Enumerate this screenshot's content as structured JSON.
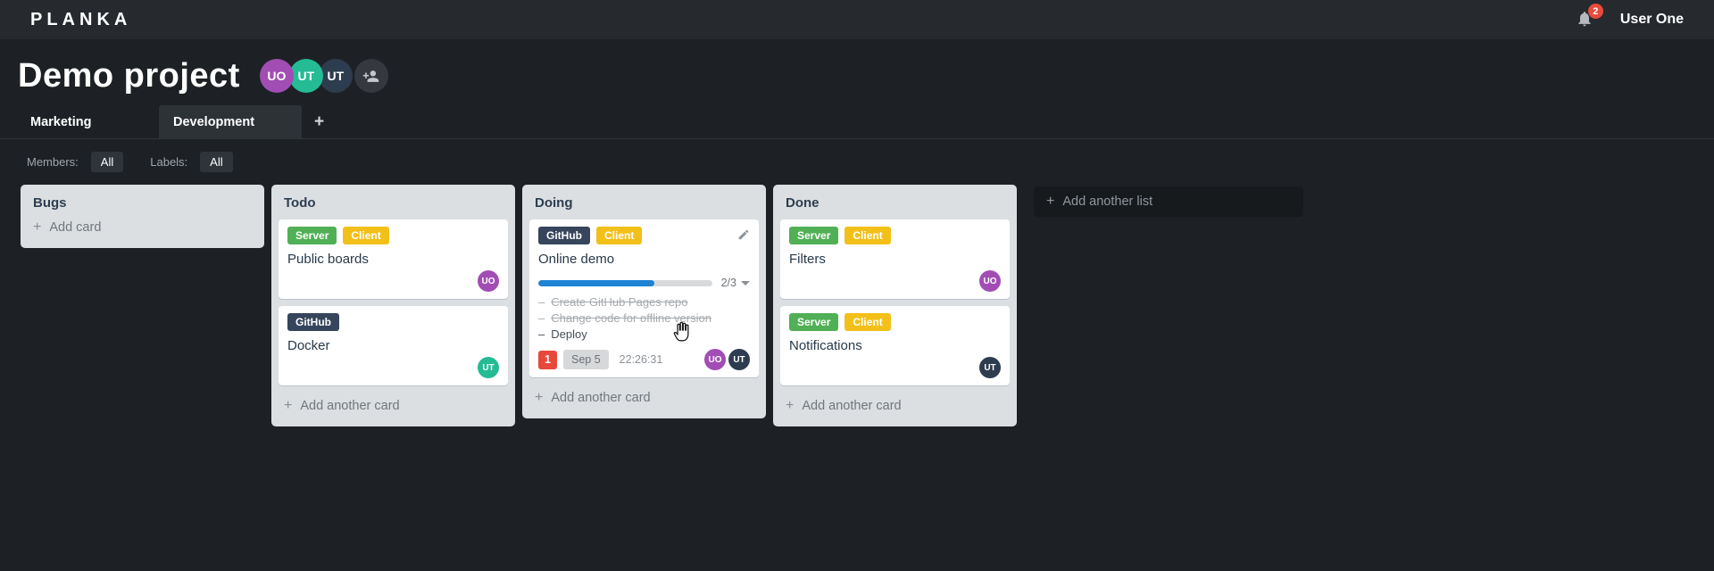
{
  "topbar": {
    "logo": "PLANKA",
    "user_name": "User One",
    "notifications_count": "2"
  },
  "project": {
    "title": "Demo project",
    "members": [
      {
        "initials": "UO",
        "color": "#a14db3"
      },
      {
        "initials": "UT",
        "color": "#25bb95"
      },
      {
        "initials": "UT",
        "color": "#2e3c4f"
      }
    ]
  },
  "tabs": [
    {
      "label": "Marketing",
      "active": false
    },
    {
      "label": "Development",
      "active": true
    }
  ],
  "add_tab_icon": "+",
  "plus_icon": "+",
  "filters": {
    "members_label": "Members:",
    "members_value": "All",
    "labels_label": "Labels:",
    "labels_value": "All"
  },
  "board": {
    "add_list_label": "Add another list",
    "lists": [
      {
        "title": "Bugs",
        "add_label": "Add card",
        "cards": []
      },
      {
        "title": "Todo",
        "add_label": "Add another card",
        "cards": [
          {
            "title": "Public boards",
            "labels": [
              {
                "text": "Server",
                "color": "#51b055"
              },
              {
                "text": "Client",
                "color": "#f2c019"
              }
            ],
            "members": [
              {
                "initials": "UO",
                "color": "#a14db3"
              }
            ]
          },
          {
            "title": "Docker",
            "labels": [
              {
                "text": "GitHub",
                "color": "#36455c"
              }
            ],
            "members": [
              {
                "initials": "UT",
                "color": "#25bb95"
              }
            ]
          }
        ]
      },
      {
        "title": "Doing",
        "add_label": "Add another card",
        "cards": [
          {
            "title": "Online demo",
            "editable": true,
            "labels": [
              {
                "text": "GitHub",
                "color": "#36455c"
              },
              {
                "text": "Client",
                "color": "#f2c019"
              }
            ],
            "progress": {
              "value": "2/3",
              "percent": 66.7,
              "color": "#1e83d3"
            },
            "tasks": [
              {
                "text": "Create GitHub Pages repo",
                "done": true
              },
              {
                "text": "Change code for offline version",
                "done": true
              },
              {
                "text": "Deploy",
                "done": false
              }
            ],
            "badges": {
              "notifications": "1",
              "notifications_color": "#e8483a",
              "due_date": "Sep 5",
              "timer": "22:26:31"
            },
            "members": [
              {
                "initials": "UO",
                "color": "#a14db3"
              },
              {
                "initials": "UT",
                "color": "#2e3c4f"
              }
            ]
          }
        ]
      },
      {
        "title": "Done",
        "add_label": "Add another card",
        "cards": [
          {
            "title": "Filters",
            "labels": [
              {
                "text": "Server",
                "color": "#51b055"
              },
              {
                "text": "Client",
                "color": "#f2c019"
              }
            ],
            "members": [
              {
                "initials": "UO",
                "color": "#a14db3"
              }
            ]
          },
          {
            "title": "Notifications",
            "labels": [
              {
                "text": "Server",
                "color": "#51b055"
              },
              {
                "text": "Client",
                "color": "#f2c019"
              }
            ],
            "members": [
              {
                "initials": "UT",
                "color": "#2e3c4f"
              }
            ]
          }
        ]
      }
    ]
  }
}
